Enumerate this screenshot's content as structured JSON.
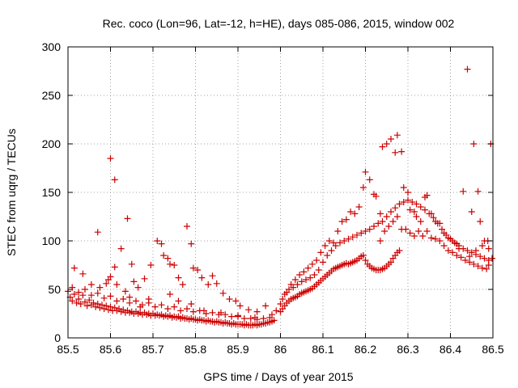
{
  "chart_data": {
    "type": "scatter",
    "title": "Rec. coco (Lon=96, Lat=-12, h=HE), days 085-086, 2015, window 002",
    "xlabel": "GPS time / Days of year 2015",
    "ylabel": "STEC from uqrg / TECUs",
    "xlim": [
      85.5,
      86.5
    ],
    "ylim": [
      0,
      300
    ],
    "xticks": [
      "85.5",
      "85.6",
      "85.7",
      "85.8",
      "85.9",
      "86",
      "86.1",
      "86.2",
      "86.3",
      "86.4",
      "86.5"
    ],
    "yticks": [
      "0",
      "50",
      "100",
      "150",
      "200",
      "250",
      "300"
    ],
    "xtick_values": [
      85.5,
      85.6,
      85.7,
      85.8,
      85.9,
      86.0,
      86.1,
      86.2,
      86.3,
      86.4,
      86.5
    ],
    "ytick_values": [
      0,
      50,
      100,
      150,
      200,
      250,
      300
    ],
    "grid": true,
    "marker": "plus",
    "color": "#cc0000",
    "points": [
      [
        85.5,
        48
      ],
      [
        85.505,
        42
      ],
      [
        85.51,
        38
      ],
      [
        85.515,
        45
      ],
      [
        85.52,
        36
      ],
      [
        85.525,
        40
      ],
      [
        85.53,
        35
      ],
      [
        85.535,
        44
      ],
      [
        85.54,
        37
      ],
      [
        85.545,
        33
      ],
      [
        85.55,
        39
      ],
      [
        85.555,
        34
      ],
      [
        85.56,
        36
      ],
      [
        85.565,
        32
      ],
      [
        85.57,
        35
      ],
      [
        85.575,
        31
      ],
      [
        85.58,
        34
      ],
      [
        85.585,
        30
      ],
      [
        85.59,
        33
      ],
      [
        85.595,
        29
      ],
      [
        85.6,
        32
      ],
      [
        85.605,
        28
      ],
      [
        85.61,
        31
      ],
      [
        85.615,
        28
      ],
      [
        85.62,
        30
      ],
      [
        85.625,
        27
      ],
      [
        85.63,
        29
      ],
      [
        85.635,
        26
      ],
      [
        85.64,
        28
      ],
      [
        85.645,
        26
      ],
      [
        85.65,
        27
      ],
      [
        85.655,
        25
      ],
      [
        85.66,
        27
      ],
      [
        85.665,
        25
      ],
      [
        85.67,
        26
      ],
      [
        85.675,
        24
      ],
      [
        85.68,
        26
      ],
      [
        85.685,
        24
      ],
      [
        85.69,
        25
      ],
      [
        85.695,
        23
      ],
      [
        85.7,
        25
      ],
      [
        85.705,
        23
      ],
      [
        85.71,
        24
      ],
      [
        85.715,
        23
      ],
      [
        85.72,
        24
      ],
      [
        85.725,
        22
      ],
      [
        85.73,
        23
      ],
      [
        85.735,
        22
      ],
      [
        85.74,
        23
      ],
      [
        85.745,
        21
      ],
      [
        85.75,
        22
      ],
      [
        85.755,
        21
      ],
      [
        85.76,
        22
      ],
      [
        85.765,
        20
      ],
      [
        85.77,
        21
      ],
      [
        85.775,
        20
      ],
      [
        85.78,
        20
      ],
      [
        85.785,
        19
      ],
      [
        85.79,
        20
      ],
      [
        85.795,
        19
      ],
      [
        85.8,
        19
      ],
      [
        85.805,
        18
      ],
      [
        85.81,
        19
      ],
      [
        85.815,
        18
      ],
      [
        85.82,
        18
      ],
      [
        85.825,
        17
      ],
      [
        85.83,
        18
      ],
      [
        85.835,
        17
      ],
      [
        85.84,
        17
      ],
      [
        85.845,
        16
      ],
      [
        85.85,
        17
      ],
      [
        85.855,
        16
      ],
      [
        85.86,
        16
      ],
      [
        85.865,
        15
      ],
      [
        85.87,
        16
      ],
      [
        85.875,
        15
      ],
      [
        85.88,
        15
      ],
      [
        85.885,
        14
      ],
      [
        85.89,
        15
      ],
      [
        85.895,
        14
      ],
      [
        85.9,
        14
      ],
      [
        85.905,
        14
      ],
      [
        85.91,
        14
      ],
      [
        85.915,
        13
      ],
      [
        85.92,
        14
      ],
      [
        85.925,
        13
      ],
      [
        85.93,
        13
      ],
      [
        85.935,
        13
      ],
      [
        85.94,
        14
      ],
      [
        85.945,
        13
      ],
      [
        85.95,
        14
      ],
      [
        85.955,
        14
      ],
      [
        85.96,
        15
      ],
      [
        85.965,
        15
      ],
      [
        85.97,
        16
      ],
      [
        85.975,
        16
      ],
      [
        85.98,
        17
      ],
      [
        85.51,
        52
      ],
      [
        85.525,
        47
      ],
      [
        85.54,
        50
      ],
      [
        85.555,
        44
      ],
      [
        85.57,
        46
      ],
      [
        85.585,
        41
      ],
      [
        85.6,
        43
      ],
      [
        85.615,
        38
      ],
      [
        85.63,
        40
      ],
      [
        85.645,
        36
      ],
      [
        85.66,
        38
      ],
      [
        85.675,
        34
      ],
      [
        85.69,
        36
      ],
      [
        85.705,
        32
      ],
      [
        85.72,
        34
      ],
      [
        85.735,
        30
      ],
      [
        85.75,
        32
      ],
      [
        85.765,
        28
      ],
      [
        85.78,
        30
      ],
      [
        85.795,
        27
      ],
      [
        85.81,
        28
      ],
      [
        85.825,
        25
      ],
      [
        85.84,
        26
      ],
      [
        85.855,
        24
      ],
      [
        85.87,
        24
      ],
      [
        85.885,
        22
      ],
      [
        85.9,
        22
      ],
      [
        85.915,
        20
      ],
      [
        85.93,
        20
      ],
      [
        85.945,
        19
      ],
      [
        85.96,
        20
      ],
      [
        85.975,
        21
      ],
      [
        85.515,
        72
      ],
      [
        85.535,
        66
      ],
      [
        85.555,
        55
      ],
      [
        85.575,
        52
      ],
      [
        85.595,
        60
      ],
      [
        85.615,
        55
      ],
      [
        85.635,
        48
      ],
      [
        85.655,
        58
      ],
      [
        85.665,
        52
      ],
      [
        85.68,
        61
      ],
      [
        85.695,
        75
      ],
      [
        85.71,
        100
      ],
      [
        85.72,
        97
      ],
      [
        85.725,
        85
      ],
      [
        85.735,
        82
      ],
      [
        85.74,
        76
      ],
      [
        85.75,
        75
      ],
      [
        85.76,
        62
      ],
      [
        85.77,
        55
      ],
      [
        85.78,
        115
      ],
      [
        85.79,
        97
      ],
      [
        85.795,
        72
      ],
      [
        85.805,
        70
      ],
      [
        85.815,
        62
      ],
      [
        85.83,
        55
      ],
      [
        85.84,
        64
      ],
      [
        85.85,
        56
      ],
      [
        85.865,
        46
      ],
      [
        85.88,
        40
      ],
      [
        85.895,
        38
      ],
      [
        85.905,
        33
      ],
      [
        85.925,
        29
      ],
      [
        85.945,
        27
      ],
      [
        85.965,
        33
      ],
      [
        85.98,
        24
      ],
      [
        85.99,
        28
      ],
      [
        85.57,
        109
      ],
      [
        85.6,
        185
      ],
      [
        85.61,
        163
      ],
      [
        85.625,
        92
      ],
      [
        85.64,
        123
      ],
      [
        85.65,
        76
      ],
      [
        85.61,
        73
      ],
      [
        85.6,
        63
      ],
      [
        85.59,
        56
      ],
      [
        85.645,
        42
      ],
      [
        85.67,
        32
      ],
      [
        85.69,
        40
      ],
      [
        85.74,
        45
      ],
      [
        85.76,
        38
      ],
      [
        85.79,
        35
      ],
      [
        85.82,
        28
      ],
      [
        85.86,
        26
      ],
      [
        85.9,
        23
      ],
      [
        85.94,
        21
      ],
      [
        85.985,
        18
      ],
      [
        86.0,
        27
      ],
      [
        86.005,
        30
      ],
      [
        86.01,
        33
      ],
      [
        86.015,
        36
      ],
      [
        86.02,
        38
      ],
      [
        86.025,
        40
      ],
      [
        86.03,
        41
      ],
      [
        86.035,
        42
      ],
      [
        86.04,
        43
      ],
      [
        86.045,
        45
      ],
      [
        86.05,
        46
      ],
      [
        86.055,
        47
      ],
      [
        86.06,
        48
      ],
      [
        86.065,
        49
      ],
      [
        86.07,
        50
      ],
      [
        86.075,
        51
      ],
      [
        86.08,
        53
      ],
      [
        86.085,
        55
      ],
      [
        86.09,
        57
      ],
      [
        86.095,
        59
      ],
      [
        86.1,
        61
      ],
      [
        86.105,
        63
      ],
      [
        86.11,
        65
      ],
      [
        86.115,
        67
      ],
      [
        86.12,
        69
      ],
      [
        86.125,
        71
      ],
      [
        86.13,
        72
      ],
      [
        86.135,
        73
      ],
      [
        86.14,
        74
      ],
      [
        86.145,
        75
      ],
      [
        86.15,
        76
      ],
      [
        86.155,
        77
      ],
      [
        86.16,
        76
      ],
      [
        86.165,
        77
      ],
      [
        86.17,
        78
      ],
      [
        86.175,
        79
      ],
      [
        86.18,
        80
      ],
      [
        86.185,
        82
      ],
      [
        86.19,
        84
      ],
      [
        86.195,
        85
      ],
      [
        86.2,
        80
      ],
      [
        86.205,
        76
      ],
      [
        86.21,
        74
      ],
      [
        86.215,
        72
      ],
      [
        86.22,
        71
      ],
      [
        86.225,
        70
      ],
      [
        86.23,
        70
      ],
      [
        86.235,
        70
      ],
      [
        86.24,
        71
      ],
      [
        86.245,
        72
      ],
      [
        86.25,
        74
      ],
      [
        86.255,
        76
      ],
      [
        86.26,
        78
      ],
      [
        86.265,
        82
      ],
      [
        86.27,
        85
      ],
      [
        86.275,
        88
      ],
      [
        86.28,
        90
      ],
      [
        86.0,
        35
      ],
      [
        86.01,
        45
      ],
      [
        86.02,
        50
      ],
      [
        86.03,
        52
      ],
      [
        86.04,
        55
      ],
      [
        86.05,
        58
      ],
      [
        86.06,
        60
      ],
      [
        86.07,
        62
      ],
      [
        86.08,
        65
      ],
      [
        86.09,
        70
      ],
      [
        86.1,
        78
      ],
      [
        86.11,
        85
      ],
      [
        86.12,
        90
      ],
      [
        86.13,
        95
      ],
      [
        86.14,
        98
      ],
      [
        86.15,
        100
      ],
      [
        86.16,
        102
      ],
      [
        86.17,
        104
      ],
      [
        86.18,
        106
      ],
      [
        86.19,
        108
      ],
      [
        86.2,
        110
      ],
      [
        86.21,
        112
      ],
      [
        86.22,
        115
      ],
      [
        86.23,
        118
      ],
      [
        86.24,
        120
      ],
      [
        86.25,
        125
      ],
      [
        86.26,
        130
      ],
      [
        86.27,
        134
      ],
      [
        86.28,
        138
      ],
      [
        86.29,
        140
      ],
      [
        86.3,
        142
      ],
      [
        86.31,
        140
      ],
      [
        86.32,
        138
      ],
      [
        86.33,
        135
      ],
      [
        86.34,
        132
      ],
      [
        86.35,
        128
      ],
      [
        86.36,
        124
      ],
      [
        86.37,
        118
      ],
      [
        86.38,
        112
      ],
      [
        86.39,
        106
      ],
      [
        86.4,
        102
      ],
      [
        86.41,
        98
      ],
      [
        86.42,
        95
      ],
      [
        86.43,
        92
      ],
      [
        86.44,
        90
      ],
      [
        86.45,
        88
      ],
      [
        86.46,
        86
      ],
      [
        86.47,
        84
      ],
      [
        86.48,
        82
      ],
      [
        86.49,
        80
      ],
      [
        86.005,
        40
      ],
      [
        86.015,
        47
      ],
      [
        86.025,
        55
      ],
      [
        86.035,
        60
      ],
      [
        86.045,
        65
      ],
      [
        86.055,
        68
      ],
      [
        86.065,
        72
      ],
      [
        86.075,
        76
      ],
      [
        86.085,
        80
      ],
      [
        86.095,
        88
      ],
      [
        86.105,
        95
      ],
      [
        86.115,
        100
      ],
      [
        86.125,
        98
      ],
      [
        86.135,
        110
      ],
      [
        86.145,
        120
      ],
      [
        86.155,
        122
      ],
      [
        86.165,
        130
      ],
      [
        86.175,
        128
      ],
      [
        86.185,
        135
      ],
      [
        86.195,
        155
      ],
      [
        86.2,
        171
      ],
      [
        86.21,
        163
      ],
      [
        86.22,
        148
      ],
      [
        86.225,
        146
      ],
      [
        86.235,
        128
      ],
      [
        86.24,
        197
      ],
      [
        86.25,
        200
      ],
      [
        86.26,
        205
      ],
      [
        86.27,
        191
      ],
      [
        86.275,
        209
      ],
      [
        86.285,
        192
      ],
      [
        86.29,
        155
      ],
      [
        86.3,
        150
      ],
      [
        86.305,
        132
      ],
      [
        86.315,
        130
      ],
      [
        86.32,
        125
      ],
      [
        86.33,
        120
      ],
      [
        86.34,
        145
      ],
      [
        86.345,
        147
      ],
      [
        86.355,
        128
      ],
      [
        86.365,
        120
      ],
      [
        86.375,
        118
      ],
      [
        86.385,
        108
      ],
      [
        86.395,
        103
      ],
      [
        86.405,
        100
      ],
      [
        86.415,
        97
      ],
      [
        86.42,
        92
      ],
      [
        86.235,
        100
      ],
      [
        86.245,
        110
      ],
      [
        86.255,
        115
      ],
      [
        86.265,
        120
      ],
      [
        86.275,
        125
      ],
      [
        86.285,
        112
      ],
      [
        86.295,
        112
      ],
      [
        86.305,
        108
      ],
      [
        86.315,
        105
      ],
      [
        86.325,
        110
      ],
      [
        86.335,
        105
      ],
      [
        86.345,
        110
      ],
      [
        86.355,
        103
      ],
      [
        86.365,
        102
      ],
      [
        86.375,
        100
      ],
      [
        86.385,
        95
      ],
      [
        86.395,
        90
      ],
      [
        86.405,
        88
      ],
      [
        86.415,
        85
      ],
      [
        86.425,
        83
      ],
      [
        86.435,
        80
      ],
      [
        86.445,
        78
      ],
      [
        86.455,
        76
      ],
      [
        86.465,
        74
      ],
      [
        86.475,
        72
      ],
      [
        86.485,
        71
      ],
      [
        86.49,
        75
      ],
      [
        86.43,
        151
      ],
      [
        86.44,
        277
      ],
      [
        86.45,
        130
      ],
      [
        86.455,
        200
      ],
      [
        86.465,
        151
      ],
      [
        86.47,
        120
      ],
      [
        86.48,
        100
      ],
      [
        86.49,
        92
      ],
      [
        86.495,
        200
      ],
      [
        86.498,
        82
      ],
      [
        86.445,
        84
      ],
      [
        86.46,
        90
      ],
      [
        86.475,
        95
      ],
      [
        86.488,
        100
      ]
    ]
  }
}
